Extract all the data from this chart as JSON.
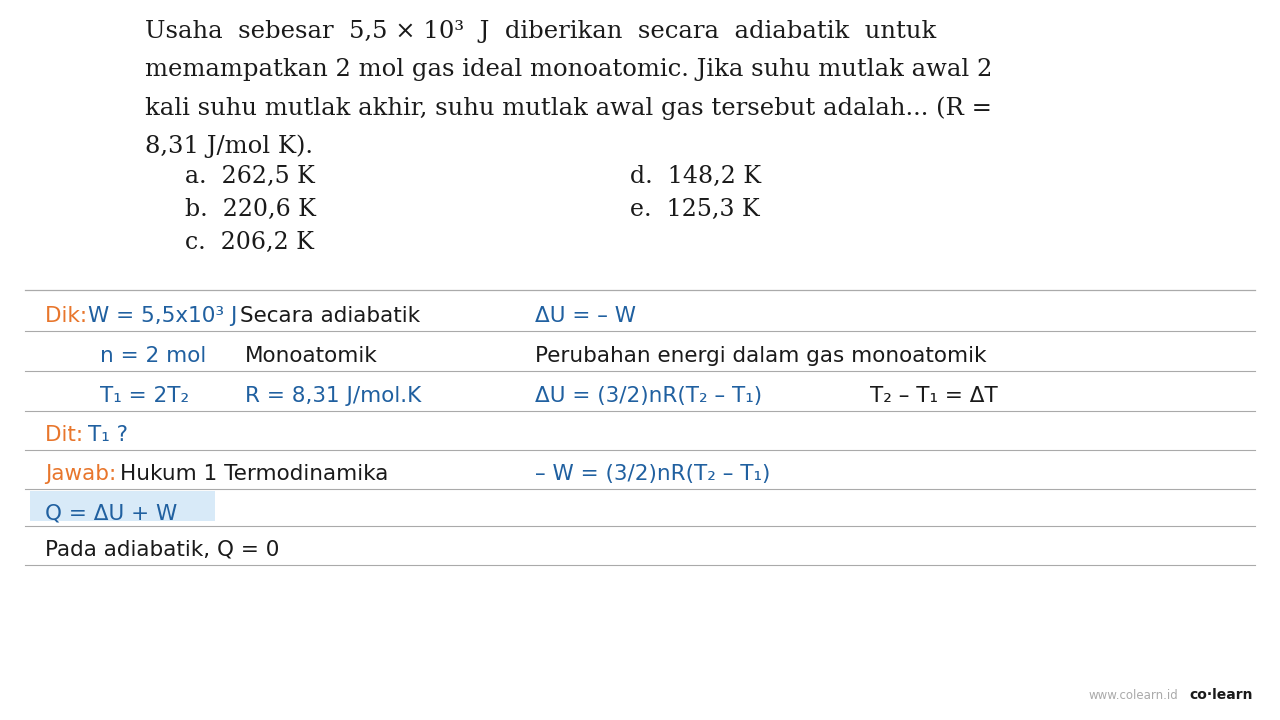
{
  "bg_color": "#ffffff",
  "title_lines": [
    "Usaha  sebesar  5,5 × 10³  J  diberikan  secara  adiabatik  untuk",
    "memampatkan 2 mol gas ideal monoatomic. Jika suhu mutlak awal 2",
    "kali suhu mutlak akhir, suhu mutlak awal gas tersebut adalah... (R =",
    "8,31 J/mol K)."
  ],
  "options_left": [
    "a.  262,5 K",
    "b.  220,6 K",
    "c.  206,2 K"
  ],
  "options_right": [
    "d.  148,2 K",
    "e.  125,3 K"
  ],
  "orange_color": "#E8762C",
  "blue_color": "#2060A0",
  "black_color": "#1a1a1a",
  "gray_color": "#777777",
  "separator_color": "#aaaaaa",
  "light_blue_bg": "#D8EAF8",
  "footer_gray": "www.colearn.id",
  "footer_bold": "co·learn",
  "title_font_size": 17.5,
  "opt_font_size": 17,
  "body_font_size": 15.5
}
